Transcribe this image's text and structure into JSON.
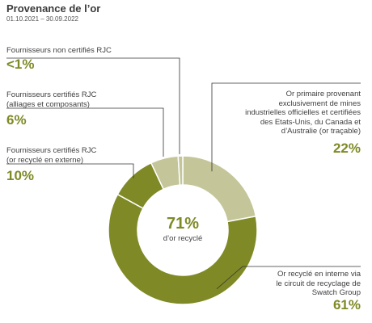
{
  "title": "Provenance de l’or",
  "period": "01.10.2021 – 30.09.2022",
  "center": {
    "value": "71%",
    "label": "d’or recyclé"
  },
  "colors": {
    "accent": "#7f8a26",
    "dark_olive": "#7f8a26",
    "light_olive": "#c4c69a",
    "lines": "#333333"
  },
  "chart_data": {
    "type": "pie",
    "style": "donut",
    "segments": [
      {
        "label": "Or primaire provenant exclusivement de mines industrielles officielles et certifiées des Etats-Unis, du Canada et d’Australie (or traçable)",
        "value": 22,
        "display": "22%",
        "color": "#c4c69a"
      },
      {
        "label": "Or recyclé en interne via le circuit de recyclage de Swatch Group",
        "value": 61,
        "display": "61%",
        "color": "#7f8a26"
      },
      {
        "label": "Fournisseurs certifiés RJC (or recyclé en externe)",
        "value": 10,
        "display": "10%",
        "color": "#7f8a26"
      },
      {
        "label": "Fournisseurs certifiés RJC (alliages et composants)",
        "value": 6,
        "display": "6%",
        "color": "#c4c69a"
      },
      {
        "label": "Fournisseurs non certifiés RJC",
        "value": 1,
        "display": "<1%",
        "color": "#c4c69a"
      }
    ]
  }
}
